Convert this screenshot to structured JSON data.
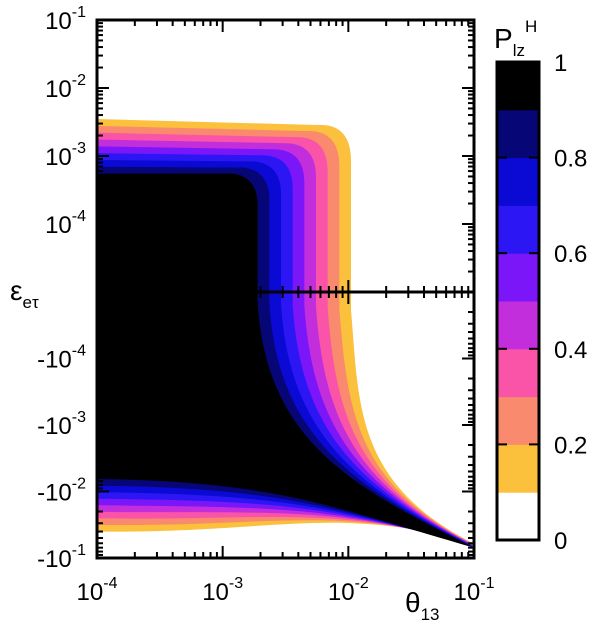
{
  "chart_data": {
    "type": "heatmap",
    "title": "",
    "xlabel": {
      "base": "θ",
      "sub": "13"
    },
    "ylabel": {
      "base": "ε",
      "sub": "eτ"
    },
    "colorbar_title": {
      "base": "P",
      "sub": "lz",
      "sup": "H"
    },
    "x_scale": "log",
    "xlim": [
      0.0001,
      0.1
    ],
    "x_ticks": [
      {
        "base": "10",
        "exp": "-4"
      },
      {
        "base": "10",
        "exp": "-3"
      },
      {
        "base": "10",
        "exp": "-2"
      },
      {
        "base": "10",
        "exp": "-1"
      }
    ],
    "y_scale": "symlog",
    "upper_ylim": [
      1e-05,
      0.1
    ],
    "upper_y_ticks": [
      {
        "base": "10",
        "exp": "-1"
      },
      {
        "base": "10",
        "exp": "-2"
      },
      {
        "base": "10",
        "exp": "-3"
      },
      {
        "base": "10",
        "exp": "-4"
      }
    ],
    "lower_ylim": [
      -1e-05,
      -0.1
    ],
    "lower_y_ticks": [
      {
        "base": "-10",
        "exp": "-4"
      },
      {
        "base": "-10",
        "exp": "-3"
      },
      {
        "base": "-10",
        "exp": "-2"
      },
      {
        "base": "-10",
        "exp": "-1"
      }
    ],
    "colorbar_ticks": [
      "1",
      "0.8",
      "0.6",
      "0.4",
      "0.2",
      "0"
    ],
    "levels": [
      0.1,
      0.2,
      0.3,
      0.4,
      0.5,
      0.6,
      0.7,
      0.8,
      0.9
    ],
    "level_colors": [
      "#ffffff",
      "#fbc03c",
      "#fa8a6e",
      "#f954a8",
      "#c22edc",
      "#7a16f8",
      "#2c16f4",
      "#0a0ad4",
      "#060676",
      "#000000"
    ],
    "colorbar_edge_fill_fraction": 0.1,
    "regions": {
      "upper_outer": {
        "y_max": 0.0035,
        "theta_cutoff": 0.0105
      },
      "upper_core": {
        "y_max": 0.00055,
        "theta_cutoff": 0.0019
      },
      "lower_outer": {
        "y_min": -0.04
      },
      "lower_core": {
        "y_min": -0.0065
      },
      "convergence_point": {
        "x": 0.1,
        "y": -0.07
      }
    }
  }
}
